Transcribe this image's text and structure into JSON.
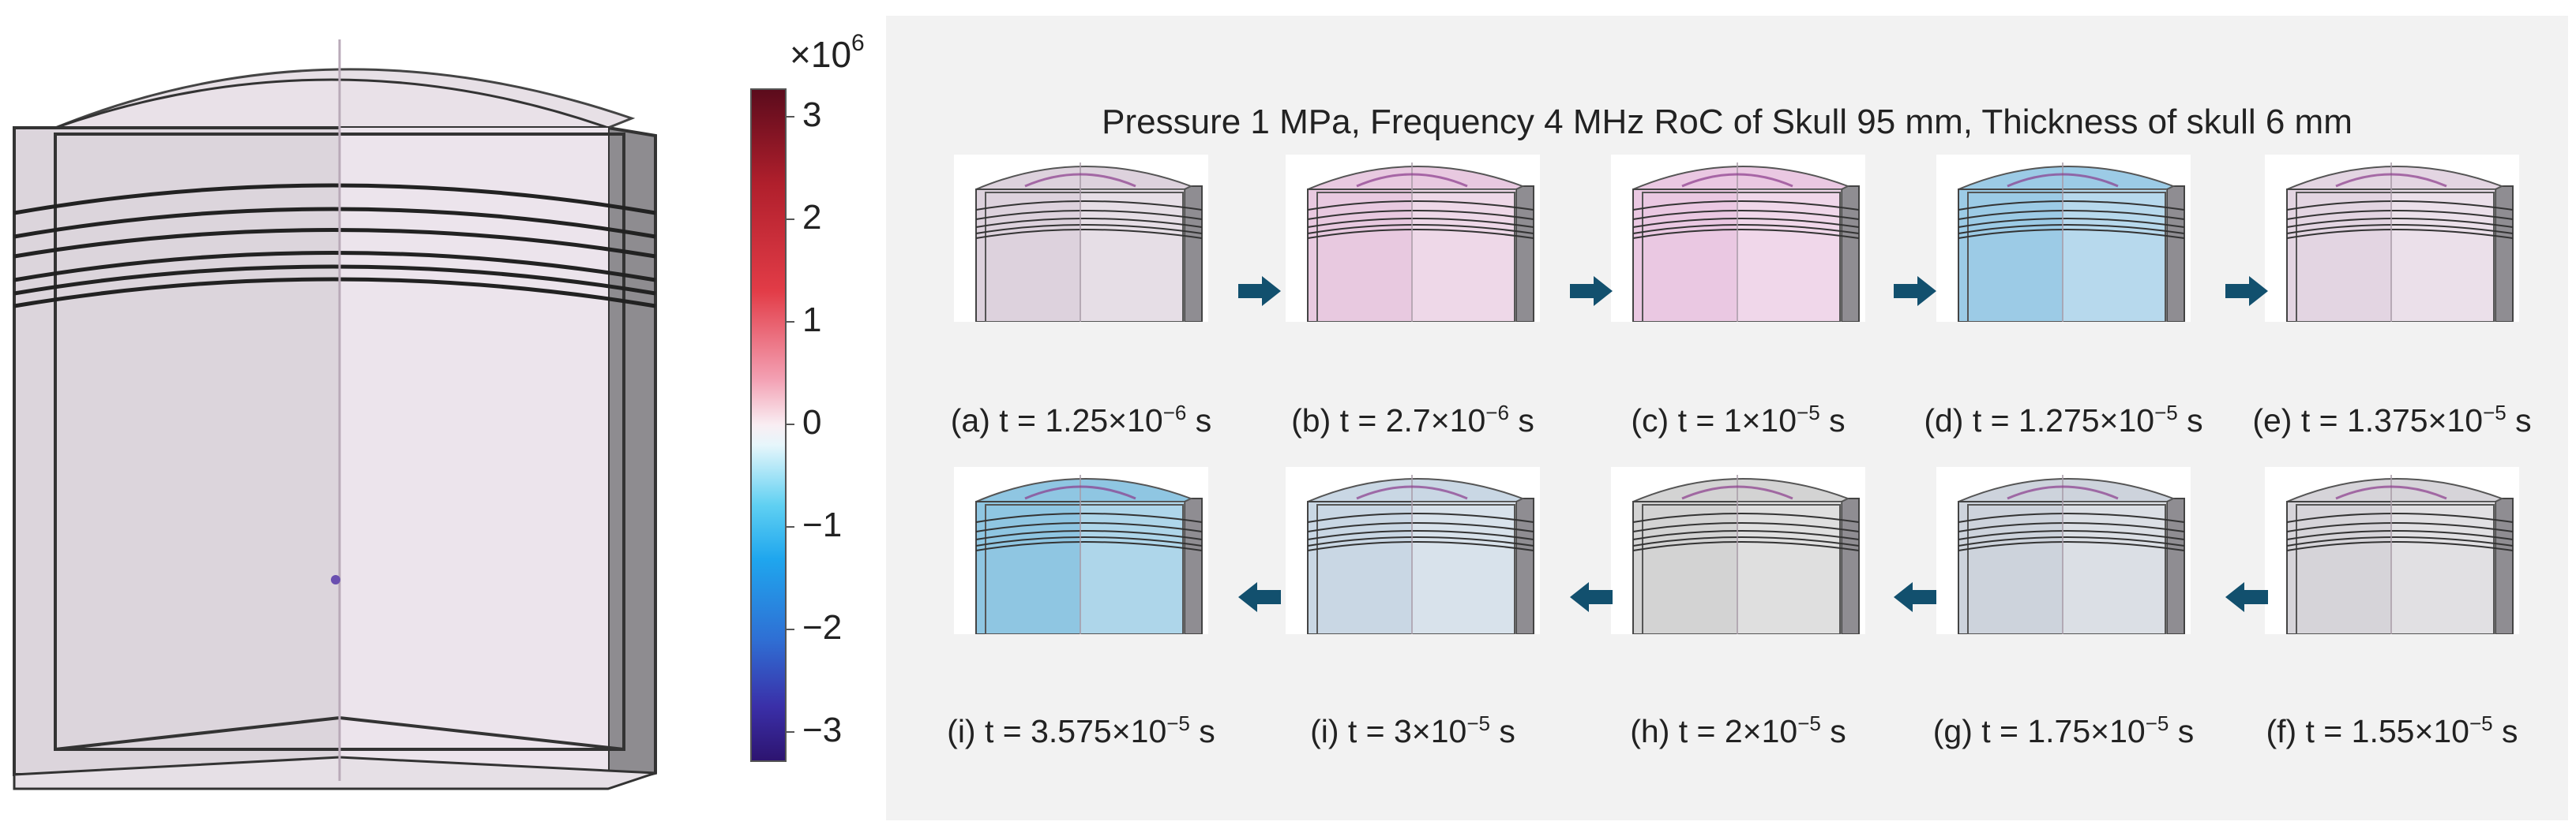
{
  "colorbar": {
    "exponent_base": "×10",
    "exponent_power": "6",
    "ticks": [
      "3",
      "2",
      "1",
      "0",
      "−1",
      "−2",
      "−3"
    ]
  },
  "title": "Pressure 1 MPa, Frequency 4 MHz RoC of Skull 95 mm, Thickness of skull 6 mm",
  "frames": [
    {
      "label": "(a) t = 1.25×10",
      "exp": "−6",
      "unit": " s",
      "tint": "#ddd2dd"
    },
    {
      "label": "(b) t = 2.7×10",
      "exp": "−6",
      "unit": " s",
      "tint": "#e8c9e0"
    },
    {
      "label": "(c) t = 1×10",
      "exp": "−5",
      "unit": " s",
      "tint": "#eac8e2"
    },
    {
      "label": "(d) t = 1.275×10",
      "exp": "−5",
      "unit": " s",
      "tint": "#9ccbe6"
    },
    {
      "label": "(e) t = 1.375×10",
      "exp": "−5",
      "unit": " s",
      "tint": "#e3d5e2"
    },
    {
      "label": "(f) t = 1.55×10",
      "exp": "−5",
      "unit": " s",
      "tint": "#d6d4d9"
    },
    {
      "label": "(g) t = 1.75×10",
      "exp": "−5",
      "unit": " s",
      "tint": "#cdd3dc"
    },
    {
      "label": "(h) t = 2×10",
      "exp": "−5",
      "unit": " s",
      "tint": "#d3d3d3"
    },
    {
      "label": "(i) t = 3×10",
      "exp": "−5",
      "unit": " s",
      "tint": "#c9d7e4"
    },
    {
      "label": "(i) t = 3.575×10",
      "exp": "−5",
      "unit": " s",
      "tint": "#8fc6e2"
    }
  ]
}
